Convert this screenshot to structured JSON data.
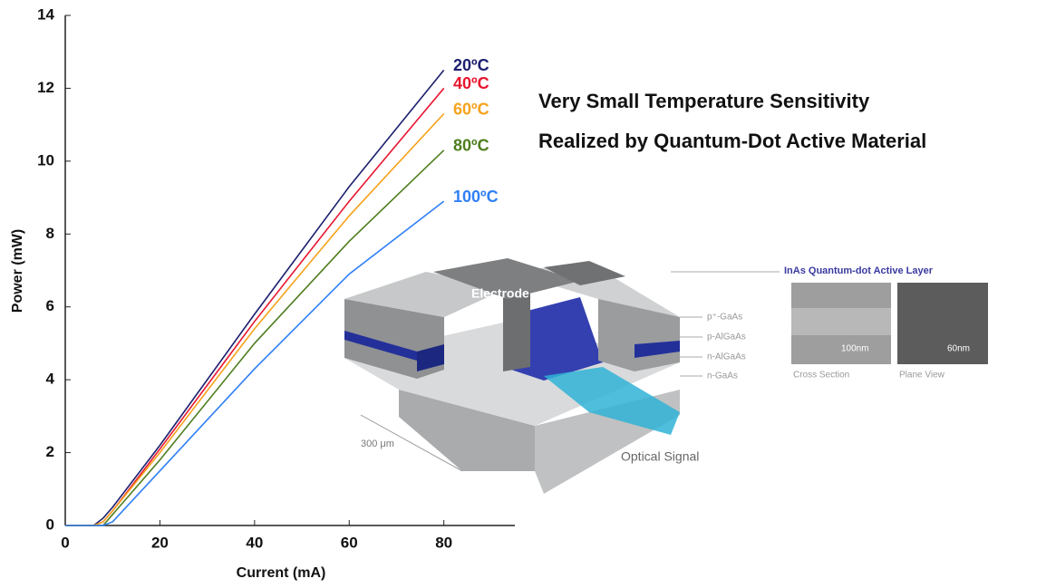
{
  "chart_data": {
    "type": "line",
    "x_label": "Current (mA)",
    "y_label": "Power (mW)",
    "x": [
      0,
      6,
      8,
      10,
      20,
      40,
      60,
      80
    ],
    "series": [
      {
        "name": "20ºC",
        "color": "#1c1f6e",
        "values": [
          0,
          0,
          0.2,
          0.5,
          2.2,
          5.8,
          9.3,
          12.5
        ]
      },
      {
        "name": "40ºC",
        "color": "#e8152e",
        "values": [
          0,
          0,
          0.1,
          0.4,
          2.1,
          5.6,
          8.9,
          12.0
        ]
      },
      {
        "name": "60ºC",
        "color": "#f6a21c",
        "values": [
          0,
          0,
          0.1,
          0.4,
          2.0,
          5.4,
          8.5,
          11.3
        ]
      },
      {
        "name": "80ºC",
        "color": "#4f7d1e",
        "values": [
          0,
          0,
          0,
          0.3,
          1.8,
          5.0,
          7.8,
          10.3
        ]
      },
      {
        "name": "100ºC",
        "color": "#2f7ff5",
        "values": [
          0,
          0,
          0,
          0.1,
          1.5,
          4.3,
          6.9,
          8.9
        ]
      }
    ],
    "xlim": [
      0,
      95
    ],
    "xticks": [
      0,
      20,
      40,
      60,
      80
    ],
    "ylim": [
      0,
      14
    ],
    "yticks": [
      0,
      2,
      4,
      6,
      8,
      10,
      12,
      14
    ],
    "grid": false,
    "annotations": [
      "Very Small Temperature Sensitivity",
      "Realized by Quantum-Dot Active Material"
    ]
  },
  "diagram": {
    "electrode": "Electrode",
    "layers": [
      "p⁺-GaAs",
      "p-AlGaAs",
      "n-AlGaAs",
      "n-GaAs"
    ],
    "inset_title": "InAs Quantum-dot Active Layer",
    "scale_left": "100nm",
    "scale_right": "60nm",
    "caption_left": "Cross Section",
    "caption_right": "Plane View",
    "width_label": "300 μm",
    "signal": "Optical Signal"
  }
}
